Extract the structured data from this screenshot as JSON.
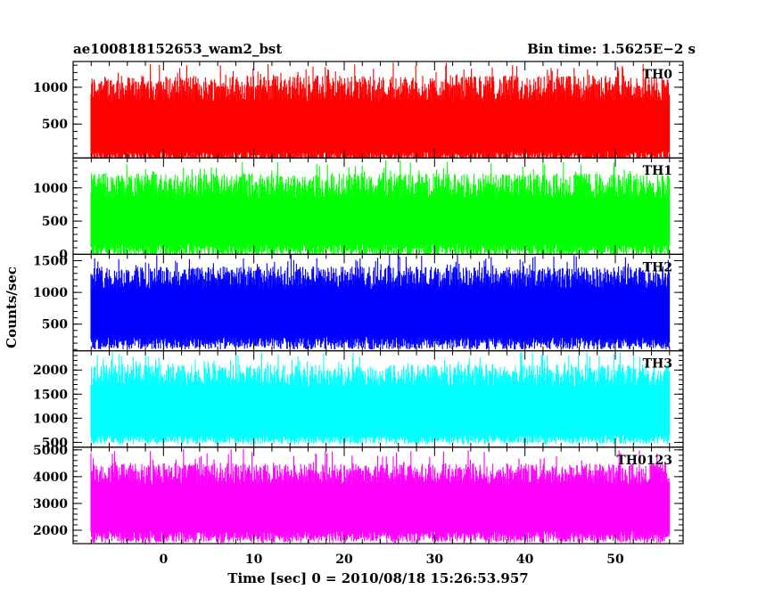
{
  "chart_data": {
    "type": "line",
    "title_left": "ae100818152653_wam2_bst",
    "title_right": "Bin time: 1.5625E−2 s",
    "xlabel": "Time [sec] 0 = 2010/08/18 15:26:53.957",
    "ylabel": "Counts/sec",
    "x_range": [
      -8,
      56
    ],
    "xlim": [
      -10,
      57.5
    ],
    "x_ticks": [
      0,
      10,
      20,
      30,
      40,
      50
    ],
    "grid": false,
    "series": [
      {
        "name": "TH0",
        "color": "#ff0000",
        "ylim": [
          40,
          1350
        ],
        "y_ticks": [
          500,
          1000
        ],
        "low_mean": 50,
        "low_spread": 160,
        "high_mean": 980,
        "high_spread": 360,
        "burst_max": 1340
      },
      {
        "name": "TH1",
        "color": "#00ff00",
        "ylim": [
          0,
          1450
        ],
        "y_ticks": [
          0,
          500,
          1000
        ],
        "low_mean": 60,
        "low_spread": 200,
        "high_mean": 1030,
        "high_spread": 380,
        "burst_max": 1420
      },
      {
        "name": "TH2",
        "color": "#0000ff",
        "ylim": [
          80,
          1600
        ],
        "y_ticks": [
          500,
          1000,
          1500
        ],
        "low_mean": 200,
        "low_spread": 200,
        "high_mean": 1230,
        "high_spread": 360,
        "burst_max": 1600
      },
      {
        "name": "TH3",
        "color": "#00ffff",
        "ylim": [
          400,
          2400
        ],
        "y_ticks": [
          500,
          1000,
          1500,
          2000
        ],
        "low_mean": 560,
        "low_spread": 200,
        "high_mean": 1880,
        "high_spread": 480,
        "burst_max": 2380
      },
      {
        "name": "TH0123",
        "color": "#ff00ff",
        "ylim": [
          1500,
          5100
        ],
        "y_ticks": [
          2000,
          3000,
          4000,
          5000
        ],
        "low_mean": 1750,
        "low_spread": 450,
        "high_mean": 4100,
        "high_spread": 800,
        "burst_max": 5050
      }
    ]
  }
}
